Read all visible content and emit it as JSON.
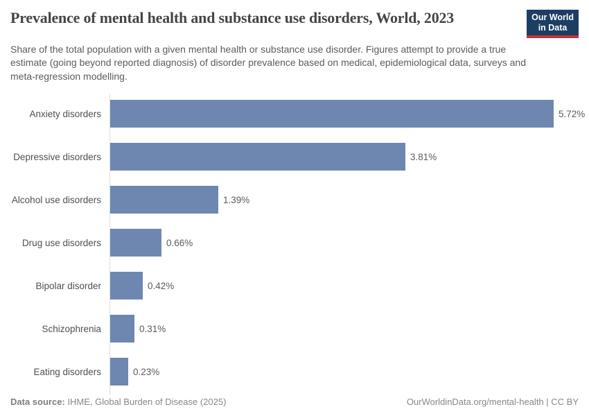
{
  "header": {
    "title": "Prevalence of mental health and substance use disorders, World, 2023",
    "subtitle": "Share of the total population with a given mental health or substance use disorder. Figures attempt to provide a true estimate (going beyond reported diagnosis) of disorder prevalence based on medical, epidemiological data, surveys and meta-regression modelling.",
    "logo_line1": "Our World",
    "logo_line2": "in Data"
  },
  "chart_data": {
    "type": "bar",
    "orientation": "horizontal",
    "title": "Prevalence of mental health and substance use disorders, World, 2023",
    "categories": [
      "Anxiety disorders",
      "Depressive disorders",
      "Alcohol use disorders",
      "Drug use disorders",
      "Bipolar disorder",
      "Schizophrenia",
      "Eating disorders"
    ],
    "values": [
      5.72,
      3.81,
      1.39,
      0.66,
      0.42,
      0.31,
      0.23
    ],
    "value_labels": [
      "5.72%",
      "3.81%",
      "1.39%",
      "0.66%",
      "0.42%",
      "0.31%",
      "0.23%"
    ],
    "unit": "%",
    "xlim": [
      0,
      5.72
    ],
    "grid": false,
    "legend": "none",
    "bar_color": "#6d87b1"
  },
  "footer": {
    "source_label": "Data source:",
    "source_value": "IHME, Global Burden of Disease (2025)",
    "credit": "OurWorldinData.org/mental-health | CC BY"
  }
}
